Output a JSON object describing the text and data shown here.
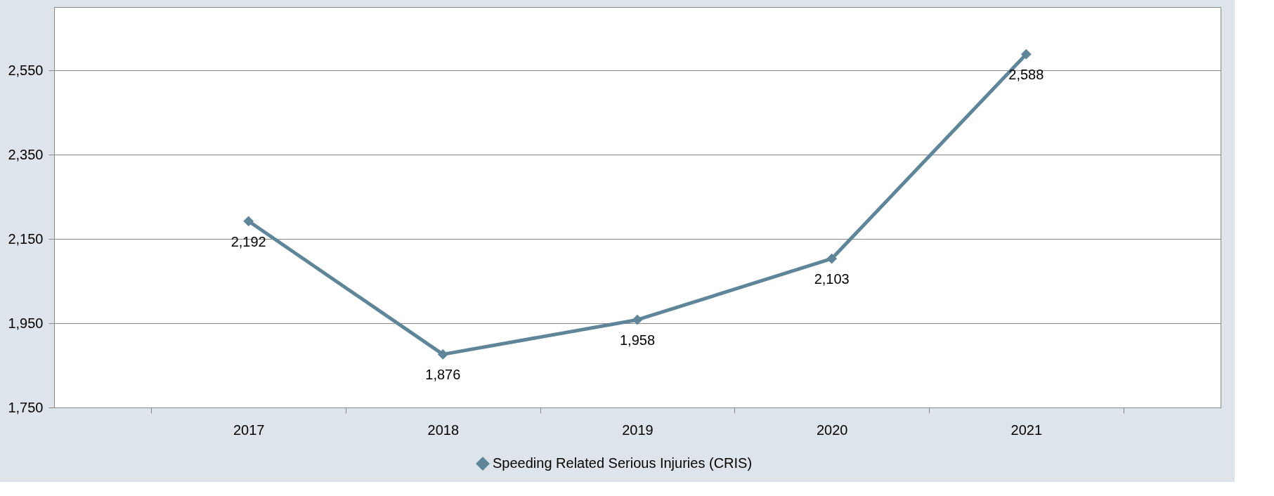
{
  "chart_data": {
    "type": "line",
    "categories": [
      "2017",
      "2018",
      "2019",
      "2020",
      "2021"
    ],
    "series": [
      {
        "name": "Speeding Related Serious Injuries (CRIS)",
        "color": "#5f8599",
        "values": [
          2192,
          1876,
          1958,
          2103,
          2588
        ],
        "value_labels": [
          "2,192",
          "1,876",
          "1,958",
          "2,103",
          "2,588"
        ]
      }
    ],
    "ylim": [
      1750,
      2700
    ],
    "yticks": [
      {
        "value": 1750,
        "label": "1,750"
      },
      {
        "value": 1950,
        "label": "1,950"
      },
      {
        "value": 2150,
        "label": "2,150"
      },
      {
        "value": 2350,
        "label": "2,350"
      },
      {
        "value": 2550,
        "label": "2,550"
      }
    ],
    "grid": "y",
    "legend": "bottom",
    "marker": "diamond",
    "line_style": "solid"
  }
}
